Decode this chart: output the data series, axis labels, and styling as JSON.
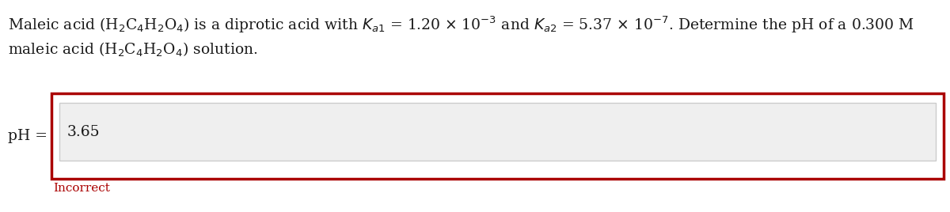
{
  "line1": "Maleic acid (H$_2$C$_4$H$_2$O$_4$) is a diprotic acid with $K_{a1}$ = 1.20 × 10$^{-3}$ and $K_{a2}$ = 5.37 × 10$^{-7}$. Determine the pH of a 0.300 M",
  "line2": "maleic acid (H$_2$C$_4$H$_2$O$_4$) solution.",
  "ph_label": "pH =",
  "answer_value": "3.65",
  "incorrect_label": "Incorrect",
  "bg_color": "#ffffff",
  "text_color": "#1a1a1a",
  "incorrect_color": "#aa0000",
  "box_border_color": "#aa0000",
  "input_bg_color": "#efefef",
  "input_border_color": "#cccccc",
  "fontsize_main": 13.5,
  "fontsize_answer": 13.5,
  "fontsize_incorrect": 11.0
}
